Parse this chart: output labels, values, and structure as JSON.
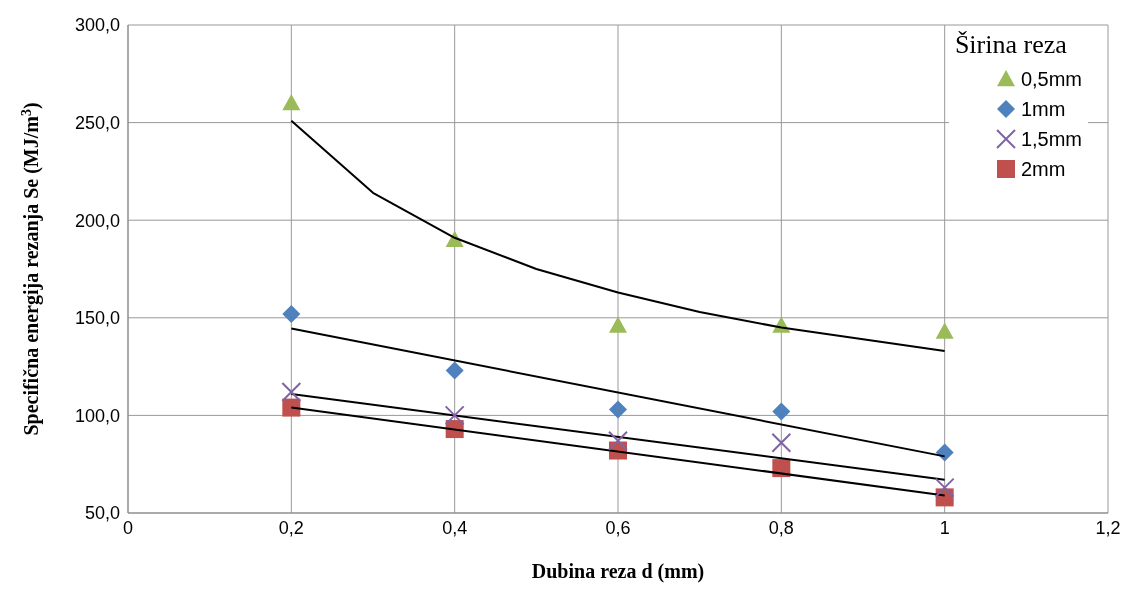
{
  "chart_data": {
    "type": "scatter",
    "xlabel": "Dubina reza d (mm)",
    "ylabel": "Specifična energija rezanja Se (MJ/m$^{3}$)",
    "legend_title": "Širina reza",
    "legend": "top right",
    "grid": true,
    "xlim": [
      0,
      1.2
    ],
    "xticks": [
      0,
      {
        "value": 0.2,
        "label": "0,2"
      },
      {
        "value": 0.4,
        "label": "0,4"
      },
      {
        "value": 0.6,
        "label": "0,6"
      },
      {
        "value": 0.8,
        "label": "0,8"
      },
      1,
      {
        "value": 1.2,
        "label": "1,2"
      }
    ],
    "ylim": [
      50,
      300
    ],
    "yticks": [
      {
        "value": 50,
        "label": "50,0"
      },
      {
        "value": 100,
        "label": "100,0"
      },
      {
        "value": 150,
        "label": "150,0"
      },
      {
        "value": 200,
        "label": "200,0"
      },
      {
        "value": 250,
        "label": "250,0"
      },
      {
        "value": 300,
        "label": "300,0"
      }
    ],
    "x": [
      0.2,
      0.4,
      0.6,
      0.8,
      1
    ],
    "series": [
      {
        "name": "0,5mm",
        "color": "#9bbb59",
        "marker": "triangle",
        "values": [
          260,
          190,
          146,
          146,
          143
        ]
      },
      {
        "name": "1mm",
        "color": "#4f81bd",
        "marker": "diamond",
        "values": [
          152,
          123,
          103,
          102,
          81
        ]
      },
      {
        "name": "1,5mm",
        "color": "#8064a2",
        "marker": "cross",
        "values": [
          112,
          100,
          87,
          86,
          63
        ]
      },
      {
        "name": "2mm",
        "color": "#c0504d",
        "marker": "square",
        "values": [
          104,
          93,
          82,
          73,
          58
        ]
      },
      {
        "type": "line",
        "color": "#000000",
        "marker": "none",
        "x": [
          0.2,
          0.3,
          0.4,
          0.5,
          0.6,
          0.7,
          0.8,
          0.9,
          1
        ],
        "values": [
          251,
          214,
          191,
          175,
          163,
          153,
          145,
          139,
          133
        ]
      },
      {
        "type": "line",
        "color": "#000000",
        "marker": "none",
        "x": [
          0.2,
          1
        ],
        "values": [
          144.5,
          79
        ]
      },
      {
        "type": "line",
        "color": "#000000",
        "marker": "none",
        "x": [
          0.2,
          1
        ],
        "values": [
          111,
          67
        ]
      },
      {
        "type": "line",
        "color": "#000000",
        "marker": "none",
        "x": [
          0.2,
          1
        ],
        "values": [
          104,
          59
        ]
      }
    ]
  }
}
